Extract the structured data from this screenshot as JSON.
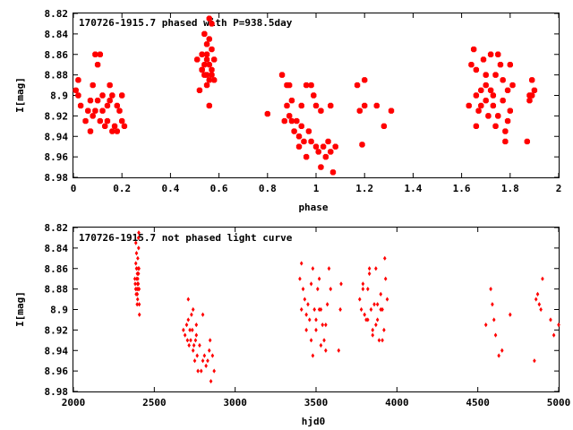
{
  "colors": {
    "points": "#ff0000",
    "frame": "#000000",
    "background": "#ffffff"
  },
  "chart_data": [
    {
      "type": "scatter",
      "title": "170726-1915.7 phased with P=938.5day",
      "xlabel": "phase",
      "ylabel": "I[mag]",
      "xlim": [
        0,
        2
      ],
      "ylim": [
        8.82,
        8.98
      ],
      "y_inverted": true,
      "x_ticks": [
        "0",
        "0.2",
        "0.4",
        "0.6",
        "0.8",
        "1",
        "1.2",
        "1.4",
        "1.6",
        "1.8",
        "2"
      ],
      "y_ticks": [
        "8.82",
        "8.84",
        "8.86",
        "8.88",
        "8.9",
        "8.92",
        "8.94",
        "8.96",
        "8.98"
      ],
      "marker": "filled-circle-large",
      "series": [
        {
          "x": [
            0.01,
            0.02,
            0.02,
            0.03,
            0.05,
            0.06,
            0.07,
            0.07,
            0.08,
            0.08,
            0.09,
            0.09,
            0.1,
            0.1,
            0.11,
            0.11,
            0.12,
            0.12,
            0.13,
            0.14,
            0.14,
            0.15,
            0.15,
            0.16,
            0.16,
            0.17,
            0.18,
            0.18,
            0.19,
            0.2,
            0.2,
            0.21,
            0.51,
            0.52,
            0.53,
            0.53,
            0.54,
            0.54,
            0.54,
            0.55,
            0.55,
            0.55,
            0.55,
            0.56,
            0.56,
            0.56,
            0.56,
            0.57,
            0.57,
            0.57,
            0.57,
            0.58,
            0.58,
            0.56,
            0.53,
            0.55,
            0.8,
            0.86,
            0.87,
            0.88,
            0.88,
            0.89,
            0.9,
            0.91,
            0.92,
            0.93,
            0.94,
            0.94,
            0.95,
            0.96,
            0.97,
            0.98,
            1.0,
            1.01,
            1.02,
            1.03,
            1.04,
            1.05,
            1.06,
            1.07,
            1.08,
            0.99,
            0.98,
            1.0,
            1.02,
            0.93,
            0.9,
            0.89,
            0.96,
            1.06,
            1.17,
            1.18,
            1.19,
            1.2,
            1.2,
            1.25,
            1.28,
            1.31,
            1.63,
            1.64,
            1.65,
            1.66,
            1.66,
            1.67,
            1.68,
            1.69,
            1.7,
            1.7,
            1.71,
            1.72,
            1.72,
            1.73,
            1.74,
            1.74,
            1.75,
            1.76,
            1.77,
            1.78,
            1.79,
            1.8,
            1.81,
            1.8,
            1.79,
            1.75,
            1.7,
            1.68,
            1.66,
            1.73,
            1.77,
            1.78,
            1.87,
            1.88,
            1.89,
            1.89,
            1.9,
            1.88
          ],
          "y": [
            8.895,
            8.885,
            8.9,
            8.91,
            8.925,
            8.915,
            8.905,
            8.935,
            8.89,
            8.92,
            8.86,
            8.915,
            8.905,
            8.87,
            8.925,
            8.86,
            8.9,
            8.915,
            8.93,
            8.925,
            8.91,
            8.89,
            8.905,
            8.935,
            8.9,
            8.93,
            8.91,
            8.935,
            8.915,
            8.9,
            8.925,
            8.93,
            8.865,
            8.895,
            8.86,
            8.875,
            8.84,
            8.87,
            8.88,
            8.85,
            8.86,
            8.865,
            8.88,
            8.825,
            8.845,
            8.87,
            8.885,
            8.83,
            8.855,
            8.875,
            8.88,
            8.865,
            8.885,
            8.91,
            8.875,
            8.89,
            8.918,
            8.88,
            8.925,
            8.91,
            8.89,
            8.92,
            8.905,
            8.935,
            8.925,
            8.94,
            8.91,
            8.93,
            8.945,
            8.96,
            8.935,
            8.945,
            8.95,
            8.955,
            8.97,
            8.95,
            8.96,
            8.945,
            8.955,
            8.975,
            8.95,
            8.9,
            8.89,
            8.91,
            8.915,
            8.95,
            8.925,
            8.89,
            8.89,
            8.91,
            8.89,
            8.915,
            8.948,
            8.885,
            8.91,
            8.91,
            8.93,
            8.915,
            8.91,
            8.87,
            8.855,
            8.875,
            8.9,
            8.915,
            8.895,
            8.865,
            8.88,
            8.905,
            8.92,
            8.86,
            8.895,
            8.91,
            8.93,
            8.88,
            8.92,
            8.87,
            8.905,
            8.945,
            8.895,
            8.915,
            8.89,
            8.87,
            8.925,
            8.86,
            8.89,
            8.91,
            8.93,
            8.9,
            8.885,
            8.935,
            8.945,
            8.905,
            8.9,
            8.885,
            8.895,
            8.9
          ]
        }
      ]
    },
    {
      "type": "scatter",
      "title": "170726-1915.7 not phased light curve",
      "xlabel": "hjd0",
      "ylabel": "I[mag]",
      "xlim": [
        2000,
        5000
      ],
      "ylim": [
        8.82,
        8.98
      ],
      "y_inverted": true,
      "x_ticks": [
        "2000",
        "2500",
        "3000",
        "3500",
        "4000",
        "4500",
        "5000"
      ],
      "y_ticks": [
        "8.82",
        "8.84",
        "8.86",
        "8.88",
        "8.9",
        "8.92",
        "8.94",
        "8.96",
        "8.98"
      ],
      "marker": "small-diamond",
      "series": [
        {
          "x": [
            2380,
            2382,
            2385,
            2386,
            2388,
            2390,
            2392,
            2393,
            2394,
            2395,
            2396,
            2397,
            2398,
            2399,
            2400,
            2401,
            2402,
            2403,
            2404,
            2405,
            2406,
            2407,
            2408,
            2395,
            2398,
            2402,
            2386,
            2390,
            2680,
            2690,
            2700,
            2705,
            2710,
            2715,
            2720,
            2725,
            2730,
            2735,
            2740,
            2745,
            2750,
            2755,
            2760,
            2765,
            2770,
            2780,
            2790,
            2800,
            2810,
            2820,
            2830,
            2840,
            2850,
            2860,
            2870,
            2710,
            2740,
            2760,
            2800,
            2845,
            3400,
            3410,
            3420,
            3430,
            3440,
            3450,
            3460,
            3470,
            3480,
            3490,
            3500,
            3510,
            3520,
            3530,
            3540,
            3550,
            3560,
            3570,
            3580,
            3590,
            3410,
            3440,
            3470,
            3500,
            3530,
            3560,
            3520,
            3480,
            3640,
            3650,
            3655,
            3770,
            3780,
            3790,
            3800,
            3810,
            3820,
            3830,
            3840,
            3850,
            3860,
            3870,
            3880,
            3890,
            3900,
            3910,
            3920,
            3930,
            3940,
            3820,
            3850,
            3880,
            3910,
            3790,
            3830,
            3870,
            3900,
            3925,
            4550,
            4580,
            4590,
            4600,
            4610,
            4630,
            4650,
            4700,
            4850,
            4860,
            4870,
            4880,
            4890,
            4900,
            4950,
            4970,
            5000
          ],
          "y": [
            8.87,
            8.875,
            8.88,
            8.855,
            8.885,
            8.86,
            8.87,
            8.88,
            8.895,
            8.865,
            8.875,
            8.89,
            8.85,
            8.88,
            8.86,
            8.875,
            8.83,
            8.84,
            8.825,
            8.86,
            8.88,
            8.895,
            8.905,
            8.885,
            8.87,
            8.865,
            8.835,
            8.845,
            8.92,
            8.925,
            8.915,
            8.93,
            8.91,
            8.935,
            8.92,
            8.93,
            8.905,
            8.92,
            8.94,
            8.935,
            8.95,
            8.93,
            8.925,
            8.945,
            8.96,
            8.935,
            8.96,
            8.95,
            8.945,
            8.955,
            8.95,
            8.94,
            8.97,
            8.945,
            8.96,
            8.89,
            8.9,
            8.915,
            8.905,
            8.93,
            8.87,
            8.855,
            8.88,
            8.89,
            8.905,
            8.895,
            8.91,
            8.875,
            8.86,
            8.9,
            8.92,
            8.88,
            8.87,
            8.9,
            8.915,
            8.93,
            8.94,
            8.895,
            8.86,
            8.88,
            8.9,
            8.92,
            8.93,
            8.91,
            8.935,
            8.915,
            8.9,
            8.945,
            8.94,
            8.9,
            8.875,
            8.89,
            8.9,
            8.875,
            8.905,
            8.91,
            8.88,
            8.865,
            8.9,
            8.92,
            8.895,
            8.86,
            8.91,
            8.93,
            8.885,
            8.9,
            8.92,
            8.87,
            8.89,
            8.91,
            8.925,
            8.895,
            8.93,
            8.88,
            8.86,
            8.915,
            8.9,
            8.85,
            8.915,
            8.88,
            8.895,
            8.91,
            8.925,
            8.945,
            8.94,
            8.905,
            8.95,
            8.89,
            8.885,
            8.895,
            8.9,
            8.87,
            8.91,
            8.925,
            8.915
          ]
        }
      ]
    }
  ]
}
